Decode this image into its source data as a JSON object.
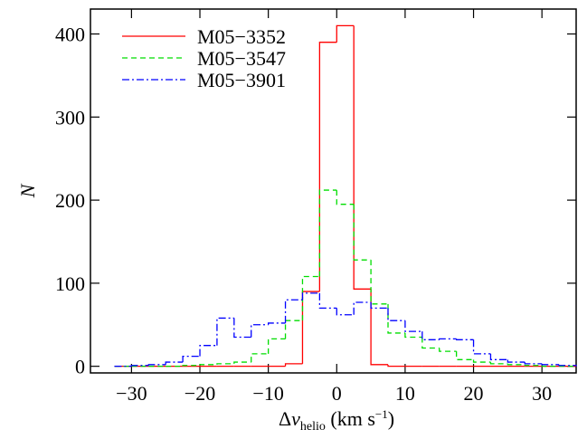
{
  "chart_data": {
    "type": "histogram",
    "xlabel": [
      "Δ",
      "v",
      "helio",
      " (km s",
      "−1",
      ")"
    ],
    "ylabel": "N",
    "bins": [
      -32.5,
      -30,
      -27.5,
      -25,
      -22.5,
      -20,
      -17.5,
      -15,
      -12.5,
      -10,
      -7.5,
      -5,
      -2.5,
      0,
      2.5,
      5,
      7.5,
      10,
      12.5,
      15,
      17.5,
      20,
      22.5,
      25,
      27.5,
      30,
      32.5,
      35
    ],
    "series": [
      {
        "name": "M05−3352",
        "color": "#ff0000",
        "dash": "none",
        "values": [
          0,
          0,
          0,
          0,
          0,
          0,
          0,
          0,
          0,
          0,
          3,
          90,
          390,
          410,
          93,
          2,
          0,
          0,
          0,
          0,
          0,
          0,
          0,
          0,
          0,
          0,
          0
        ]
      },
      {
        "name": "M05−3547",
        "color": "#00dd00",
        "dash": "6,4",
        "values": [
          0,
          0,
          0,
          0,
          1,
          2,
          3,
          5,
          15,
          33,
          55,
          108,
          212,
          195,
          128,
          75,
          40,
          35,
          22,
          18,
          8,
          5,
          3,
          2,
          1,
          0,
          0
        ]
      },
      {
        "name": "M05−3901",
        "color": "#0000ff",
        "dash": "8,3,2,3",
        "values": [
          0,
          1,
          2,
          5,
          12,
          25,
          58,
          35,
          50,
          52,
          80,
          88,
          70,
          62,
          77,
          70,
          55,
          42,
          32,
          33,
          32,
          15,
          8,
          5,
          3,
          2,
          1
        ]
      }
    ],
    "xlim": [
      -36,
      35
    ],
    "ylim": [
      -8,
      430
    ],
    "xticks": [
      {
        "value": -30,
        "label": "−30"
      },
      {
        "value": -20,
        "label": "−20"
      },
      {
        "value": -10,
        "label": "−10"
      },
      0,
      10,
      20,
      30
    ],
    "yticks": [
      0,
      100,
      200,
      300,
      400
    ],
    "legend": "upper-left"
  }
}
